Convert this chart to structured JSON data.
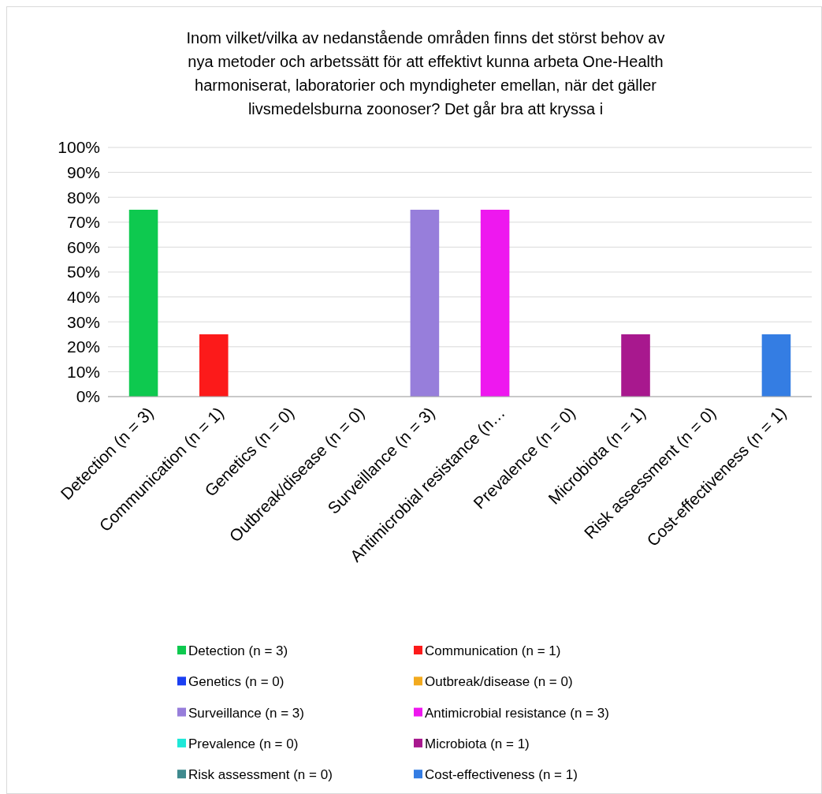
{
  "chart_data": {
    "type": "bar",
    "title": "Inom vilket/vilka av nedanstående områden finns det störst behov av nya metoder och arbetssätt för att effektivt kunna arbeta One-Health harmoniserat, laboratorier och myndigheter emellan, när det gäller livsmedelsburna zoonoser? Det går bra att kryssa i",
    "categories": [
      "Detection (n = 3)",
      "Communication (n = 1)",
      "Genetics (n = 0)",
      "Outbreak/disease (n = 0)",
      "Surveillance (n = 3)",
      "Antimicrobial resistance (n…",
      "Prevalence (n = 0)",
      "Microbiota (n = 1)",
      "Risk assessment (n = 0)",
      "Cost-effectiveness (n = 1)"
    ],
    "stacked": true,
    "series": [
      {
        "name": "Detection (n = 3)",
        "color": "#0ec94f",
        "values": [
          75,
          null,
          null,
          null,
          null,
          null,
          null,
          null,
          null,
          null
        ]
      },
      {
        "name": "Communication (n = 1)",
        "color": "#fc1a1a",
        "values": [
          null,
          25,
          null,
          null,
          null,
          null,
          null,
          null,
          null,
          null
        ]
      },
      {
        "name": "Genetics (n = 0)",
        "color": "#1b3ff2",
        "values": [
          null,
          null,
          0,
          null,
          null,
          null,
          null,
          null,
          null,
          null
        ]
      },
      {
        "name": "Outbreak/disease (n = 0)",
        "color": "#f2aa1e",
        "values": [
          null,
          null,
          null,
          0,
          null,
          null,
          null,
          null,
          null,
          null
        ]
      },
      {
        "name": "Surveillance (n = 3)",
        "color": "#977edb",
        "values": [
          null,
          null,
          null,
          null,
          75,
          null,
          null,
          null,
          null,
          null
        ]
      },
      {
        "name": "Antimicrobial resistance (n = 3)",
        "color": "#ee18ef",
        "values": [
          null,
          null,
          null,
          null,
          null,
          75,
          null,
          null,
          null,
          null
        ]
      },
      {
        "name": "Prevalence (n = 0)",
        "color": "#1ee8d8",
        "values": [
          null,
          null,
          null,
          null,
          null,
          null,
          0,
          null,
          null,
          null
        ]
      },
      {
        "name": "Microbiota (n = 1)",
        "color": "#a8188e",
        "values": [
          null,
          null,
          null,
          null,
          null,
          null,
          null,
          25,
          null,
          null
        ]
      },
      {
        "name": "Risk assessment (n = 0)",
        "color": "#3f8a8e",
        "values": [
          null,
          null,
          null,
          null,
          null,
          null,
          null,
          null,
          0,
          null
        ]
      },
      {
        "name": "Cost-effectiveness (n = 1)",
        "color": "#347de3",
        "values": [
          null,
          null,
          null,
          null,
          null,
          null,
          null,
          null,
          null,
          25
        ]
      }
    ],
    "ylim": [
      0,
      100
    ],
    "yticks": [
      {
        "value": 0,
        "label": "0%"
      },
      {
        "value": 10,
        "label": "10%"
      },
      {
        "value": 20,
        "label": "20%"
      },
      {
        "value": 30,
        "label": "30%"
      },
      {
        "value": 40,
        "label": "40%"
      },
      {
        "value": 50,
        "label": "50%"
      },
      {
        "value": 60,
        "label": "60%"
      },
      {
        "value": 70,
        "label": "70%"
      },
      {
        "value": 80,
        "label": "80%"
      },
      {
        "value": 90,
        "label": "90%"
      },
      {
        "value": 100,
        "label": "100%"
      }
    ],
    "grid": "y",
    "legend": "bottom"
  }
}
